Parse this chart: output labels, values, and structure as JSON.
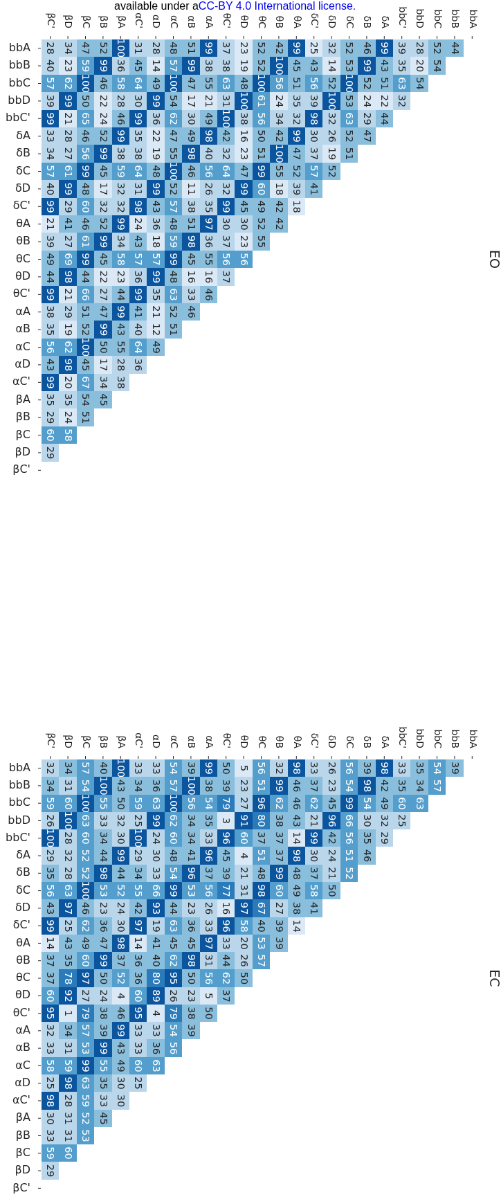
{
  "chart_data": [
    {
      "type": "heatmap",
      "title": "EO",
      "annotations": [
        "available under a",
        "CC-BY 4.0 International license."
      ],
      "categories": [
        "βC'",
        "βD",
        "βC",
        "βB",
        "βA",
        "αC'",
        "αD",
        "αC",
        "αB",
        "αA",
        "θC'",
        "θD",
        "θC",
        "θB",
        "θA",
        "δC'",
        "δD",
        "δC",
        "δB",
        "δA",
        "bbC'",
        "bbD",
        "bbC",
        "bbB",
        "bbA"
      ],
      "y_categories": [
        "bbA",
        "bbB",
        "bbC",
        "bbD",
        "bbC'",
        "δA",
        "δB",
        "δC",
        "δD",
        "δC'",
        "θA",
        "θB",
        "θC",
        "θD",
        "θC'",
        "αA",
        "αB",
        "αC",
        "αD",
        "αC'",
        "βA",
        "βB",
        "βC",
        "βD",
        "βC'"
      ],
      "colors": [
        "#dbe9f6",
        "#bad6eb",
        "#89bedc",
        "#539ecd",
        null,
        "#0b559f"
      ],
      "data_labels": true,
      "cells": [
        [
          28,
          34,
          47,
          52,
          100,
          31,
          28,
          48,
          51,
          99,
          37,
          23,
          52,
          42,
          99,
          25,
          32,
          52,
          46,
          99,
          39,
          28,
          52,
          44,
          null
        ],
        [
          40,
          23,
          59,
          99,
          36,
          45,
          14,
          57,
          99,
          38,
          38,
          19,
          52,
          100,
          45,
          43,
          14,
          53,
          99,
          43,
          35,
          20,
          54,
          null,
          null
        ],
        [
          57,
          62,
          100,
          46,
          58,
          64,
          49,
          100,
          47,
          55,
          63,
          48,
          100,
          56,
          51,
          56,
          52,
          100,
          52,
          51,
          63,
          54,
          null,
          null,
          null
        ],
        [
          39,
          99,
          50,
          22,
          28,
          30,
          99,
          54,
          17,
          21,
          31,
          100,
          61,
          24,
          35,
          39,
          100,
          53,
          24,
          22,
          32,
          null,
          null,
          null,
          null
        ],
        [
          99,
          21,
          65,
          24,
          46,
          99,
          36,
          62,
          30,
          49,
          100,
          38,
          56,
          34,
          32,
          98,
          32,
          63,
          29,
          44,
          null,
          null,
          null,
          null,
          null
        ],
        [
          33,
          28,
          46,
          52,
          99,
          35,
          22,
          47,
          49,
          98,
          42,
          16,
          50,
          42,
          99,
          30,
          26,
          52,
          47,
          null,
          null,
          null,
          null,
          null,
          null
        ],
        [
          34,
          27,
          56,
          99,
          38,
          38,
          19,
          55,
          98,
          40,
          32,
          23,
          51,
          100,
          47,
          37,
          19,
          51,
          null,
          null,
          null,
          null,
          null,
          null,
          null
        ],
        [
          57,
          61,
          99,
          45,
          59,
          64,
          48,
          100,
          46,
          56,
          64,
          47,
          99,
          55,
          52,
          57,
          52,
          null,
          null,
          null,
          null,
          null,
          null,
          null,
          null
        ],
        [
          40,
          99,
          48,
          17,
          32,
          31,
          99,
          52,
          11,
          26,
          32,
          99,
          60,
          18,
          39,
          41,
          null,
          null,
          null,
          null,
          null,
          null,
          null,
          null,
          null
        ],
        [
          99,
          29,
          60,
          32,
          32,
          98,
          43,
          57,
          38,
          35,
          99,
          45,
          49,
          42,
          18,
          null,
          null,
          null,
          null,
          null,
          null,
          null,
          null,
          null,
          null
        ],
        [
          21,
          41,
          46,
          52,
          99,
          24,
          36,
          48,
          51,
          97,
          30,
          30,
          52,
          42,
          null,
          null,
          null,
          null,
          null,
          null,
          null,
          null,
          null,
          null,
          null
        ],
        [
          39,
          27,
          61,
          99,
          34,
          43,
          18,
          59,
          98,
          36,
          37,
          23,
          55,
          null,
          null,
          null,
          null,
          null,
          null,
          null,
          null,
          null,
          null,
          null,
          null
        ],
        [
          49,
          69,
          99,
          45,
          58,
          57,
          57,
          99,
          45,
          55,
          56,
          56,
          null,
          null,
          null,
          null,
          null,
          null,
          null,
          null,
          null,
          null,
          null,
          null,
          null
        ],
        [
          44,
          98,
          44,
          22,
          23,
          36,
          99,
          48,
          16,
          16,
          37,
          null,
          null,
          null,
          null,
          null,
          null,
          null,
          null,
          null,
          null,
          null,
          null,
          null,
          null
        ],
        [
          99,
          21,
          66,
          27,
          44,
          99,
          35,
          63,
          33,
          46,
          null,
          null,
          null,
          null,
          null,
          null,
          null,
          null,
          null,
          null,
          null,
          null,
          null,
          null,
          null
        ],
        [
          38,
          29,
          51,
          47,
          99,
          41,
          21,
          52,
          46,
          null,
          null,
          null,
          null,
          null,
          null,
          null,
          null,
          null,
          null,
          null,
          null,
          null,
          null,
          null,
          null
        ],
        [
          35,
          19,
          52,
          99,
          43,
          40,
          12,
          51,
          null,
          null,
          null,
          null,
          null,
          null,
          null,
          null,
          null,
          null,
          null,
          null,
          null,
          null,
          null,
          null,
          null
        ],
        [
          56,
          62,
          100,
          50,
          55,
          64,
          49,
          null,
          null,
          null,
          null,
          null,
          null,
          null,
          null,
          null,
          null,
          null,
          null,
          null,
          null,
          null,
          null,
          null,
          null
        ],
        [
          43,
          98,
          45,
          17,
          28,
          36,
          null,
          null,
          null,
          null,
          null,
          null,
          null,
          null,
          null,
          null,
          null,
          null,
          null,
          null,
          null,
          null,
          null,
          null,
          null
        ],
        [
          99,
          20,
          67,
          34,
          38,
          null,
          null,
          null,
          null,
          null,
          null,
          null,
          null,
          null,
          null,
          null,
          null,
          null,
          null,
          null,
          null,
          null,
          null,
          null,
          null
        ],
        [
          35,
          35,
          54,
          45,
          null,
          null,
          null,
          null,
          null,
          null,
          null,
          null,
          null,
          null,
          null,
          null,
          null,
          null,
          null,
          null,
          null,
          null,
          null,
          null,
          null
        ],
        [
          29,
          24,
          51,
          null,
          null,
          null,
          null,
          null,
          null,
          null,
          null,
          null,
          null,
          null,
          null,
          null,
          null,
          null,
          null,
          null,
          null,
          null,
          null,
          null,
          null
        ],
        [
          60,
          58,
          null,
          null,
          null,
          null,
          null,
          null,
          null,
          null,
          null,
          null,
          null,
          null,
          null,
          null,
          null,
          null,
          null,
          null,
          null,
          null,
          null,
          null,
          null
        ],
        [
          29,
          null,
          null,
          null,
          null,
          null,
          null,
          null,
          null,
          null,
          null,
          null,
          null,
          null,
          null,
          null,
          null,
          null,
          null,
          null,
          null,
          null,
          null,
          null,
          null
        ],
        [
          null,
          null,
          null,
          null,
          null,
          null,
          null,
          null,
          null,
          null,
          null,
          null,
          null,
          null,
          null,
          null,
          null,
          null,
          null,
          null,
          null,
          null,
          null,
          null,
          null
        ]
      ]
    },
    {
      "type": "heatmap",
      "title": "EC",
      "categories": [
        "βC'",
        "βD",
        "βC",
        "βB",
        "βA",
        "αC'",
        "αD",
        "αC",
        "αB",
        "αA",
        "θC'",
        "θD",
        "θC",
        "θB",
        "θA",
        "δC'",
        "δD",
        "δC",
        "δB",
        "δA",
        "bbC'",
        "bbD",
        "bbC",
        "bbB",
        "bbA"
      ],
      "y_categories": [
        "bbA",
        "bbB",
        "bbC",
        "bbD",
        "bbC'",
        "δA",
        "δB",
        "δC",
        "δD",
        "δC'",
        "θA",
        "θB",
        "θC",
        "θD",
        "θC'",
        "αA",
        "αB",
        "αC",
        "αD",
        "αC'",
        "βA",
        "βB",
        "βC",
        "βD",
        "βC'"
      ],
      "colors": [
        "#dbe9f6",
        "#bad6eb",
        "#89bedc",
        "#539ecd",
        "#2b7bba",
        "#0b559f"
      ],
      "data_labels": true,
      "cells": [
        [
          32,
          34,
          57,
          40,
          100,
          33,
          33,
          54,
          39,
          99,
          50,
          5,
          56,
          32,
          98,
          33,
          26,
          56,
          39,
          98,
          33,
          35,
          54,
          39,
          null
        ],
        [
          34,
          31,
          54,
          100,
          43,
          34,
          36,
          57,
          100,
          38,
          39,
          23,
          51,
          99,
          46,
          37,
          23,
          54,
          98,
          42,
          35,
          34,
          57,
          null,
          null
        ],
        [
          59,
          60,
          100,
          55,
          50,
          59,
          63,
          100,
          56,
          54,
          79,
          27,
          96,
          62,
          46,
          62,
          45,
          99,
          54,
          49,
          60,
          63,
          null,
          null,
          null
        ],
        [
          26,
          100,
          63,
          33,
          32,
          25,
          99,
          62,
          34,
          35,
          3,
          91,
          80,
          38,
          43,
          21,
          96,
          66,
          30,
          32,
          25,
          null,
          null,
          null,
          null
        ],
        [
          100,
          28,
          60,
          34,
          30,
          100,
          24,
          60,
          34,
          33,
          96,
          60,
          37,
          37,
          14,
          99,
          42,
          56,
          35,
          29,
          null,
          null,
          null,
          null,
          null
        ],
        [
          29,
          32,
          52,
          44,
          99,
          29,
          30,
          48,
          41,
          96,
          45,
          4,
          51,
          37,
          98,
          30,
          24,
          51,
          46,
          null,
          null,
          null,
          null,
          null,
          null
        ],
        [
          35,
          28,
          52,
          98,
          44,
          34,
          33,
          54,
          96,
          37,
          39,
          21,
          48,
          99,
          48,
          37,
          21,
          52,
          null,
          null,
          null,
          null,
          null,
          null,
          null
        ],
        [
          56,
          63,
          100,
          53,
          52,
          55,
          66,
          99,
          53,
          56,
          77,
          31,
          98,
          60,
          49,
          58,
          50,
          null,
          null,
          null,
          null,
          null,
          null,
          null,
          null
        ],
        [
          43,
          97,
          46,
          23,
          24,
          42,
          93,
          44,
          23,
          26,
          16,
          97,
          67,
          27,
          38,
          41,
          null,
          null,
          null,
          null,
          null,
          null,
          null,
          null,
          null
        ],
        [
          99,
          25,
          62,
          36,
          30,
          97,
          19,
          63,
          36,
          33,
          96,
          58,
          40,
          39,
          14,
          null,
          null,
          null,
          null,
          null,
          null,
          null,
          null,
          null,
          null
        ],
        [
          14,
          43,
          49,
          47,
          98,
          14,
          41,
          45,
          45,
          97,
          33,
          20,
          53,
          39,
          null,
          null,
          null,
          null,
          null,
          null,
          null,
          null,
          null,
          null,
          null
        ],
        [
          37,
          35,
          60,
          99,
          37,
          36,
          40,
          62,
          98,
          31,
          44,
          26,
          57,
          null,
          null,
          null,
          null,
          null,
          null,
          null,
          null,
          null,
          null,
          null,
          null
        ],
        [
          37,
          78,
          97,
          50,
          52,
          36,
          80,
          95,
          50,
          56,
          62,
          50,
          null,
          null,
          null,
          null,
          null,
          null,
          null,
          null,
          null,
          null,
          null,
          null,
          null
        ],
        [
          60,
          92,
          27,
          24,
          4,
          60,
          89,
          26,
          23,
          5,
          37,
          null,
          null,
          null,
          null,
          null,
          null,
          null,
          null,
          null,
          null,
          null,
          null,
          null,
          null
        ],
        [
          95,
          1,
          79,
          38,
          46,
          95,
          4,
          79,
          38,
          50,
          null,
          null,
          null,
          null,
          null,
          null,
          null,
          null,
          null,
          null,
          null,
          null,
          null,
          null,
          null
        ],
        [
          32,
          34,
          57,
          39,
          99,
          33,
          33,
          54,
          39,
          null,
          null,
          null,
          null,
          null,
          null,
          null,
          null,
          null,
          null,
          null,
          null,
          null,
          null,
          null,
          null
        ],
        [
          33,
          31,
          53,
          99,
          43,
          33,
          36,
          56,
          null,
          null,
          null,
          null,
          null,
          null,
          null,
          null,
          null,
          null,
          null,
          null,
          null,
          null,
          null,
          null,
          null
        ],
        [
          58,
          59,
          99,
          55,
          49,
          60,
          63,
          null,
          null,
          null,
          null,
          null,
          null,
          null,
          null,
          null,
          null,
          null,
          null,
          null,
          null,
          null,
          null,
          null,
          null
        ],
        [
          25,
          98,
          63,
          35,
          30,
          25,
          null,
          null,
          null,
          null,
          null,
          null,
          null,
          null,
          null,
          null,
          null,
          null,
          null,
          null,
          null,
          null,
          null,
          null,
          null
        ],
        [
          98,
          28,
          59,
          33,
          30,
          null,
          null,
          null,
          null,
          null,
          null,
          null,
          null,
          null,
          null,
          null,
          null,
          null,
          null,
          null,
          null,
          null,
          null,
          null,
          null
        ],
        [
          30,
          31,
          52,
          45,
          null,
          null,
          null,
          null,
          null,
          null,
          null,
          null,
          null,
          null,
          null,
          null,
          null,
          null,
          null,
          null,
          null,
          null,
          null,
          null,
          null
        ],
        [
          33,
          31,
          53,
          null,
          null,
          null,
          null,
          null,
          null,
          null,
          null,
          null,
          null,
          null,
          null,
          null,
          null,
          null,
          null,
          null,
          null,
          null,
          null,
          null,
          null
        ],
        [
          59,
          60,
          null,
          null,
          null,
          null,
          null,
          null,
          null,
          null,
          null,
          null,
          null,
          null,
          null,
          null,
          null,
          null,
          null,
          null,
          null,
          null,
          null,
          null,
          null
        ],
        [
          29,
          null,
          null,
          null,
          null,
          null,
          null,
          null,
          null,
          null,
          null,
          null,
          null,
          null,
          null,
          null,
          null,
          null,
          null,
          null,
          null,
          null,
          null,
          null,
          null
        ],
        [
          null,
          null,
          null,
          null,
          null,
          null,
          null,
          null,
          null,
          null,
          null,
          null,
          null,
          null,
          null,
          null,
          null,
          null,
          null,
          null,
          null,
          null,
          null,
          null,
          null
        ]
      ]
    }
  ]
}
